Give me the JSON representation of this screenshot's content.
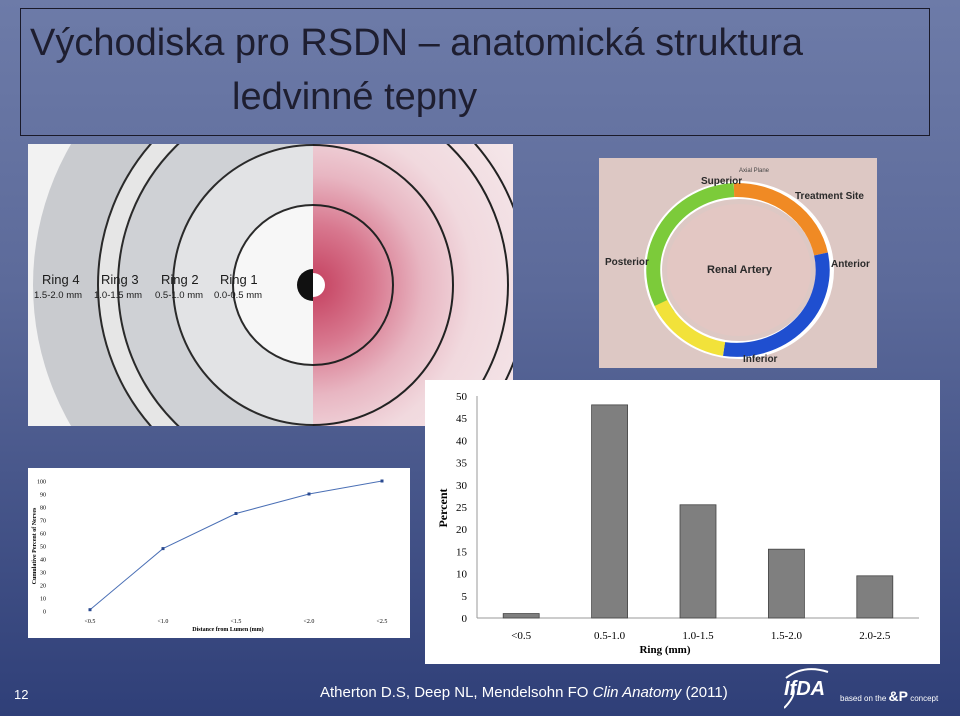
{
  "slide": {
    "title_line1": "Východiska pro RSDN – anatomická struktura",
    "title_line2": "ledvinné tepny",
    "number": "12",
    "citation_prefix": "Atherton D.S, Deep NL, Mendelsohn FO ",
    "citation_journal": "Clin Anatomy",
    "citation_year": " (2011)",
    "logo_text": "IfDA",
    "logo_tagline": "based on the",
    "logo_tagline2": "concept"
  },
  "rings_figure": {
    "rings": [
      {
        "label": "Ring 4",
        "range": "1.5-2.0 mm"
      },
      {
        "label": "Ring 3",
        "range": "1.0-1.5 mm"
      },
      {
        "label": "Ring 2",
        "range": "0.5-1.0 mm"
      },
      {
        "label": "Ring 1",
        "range": "0.0-0.5 mm"
      }
    ]
  },
  "artery_figure": {
    "labels": {
      "superior": "Superior",
      "treatment_site": "Treatment Site",
      "posterior": "Posterior",
      "renal_artery": "Renal Artery",
      "anterior": "Anterior",
      "inferior": "Inferior",
      "tiny_label": "Axial Plane"
    },
    "colors": {
      "green": "#7ccb3a",
      "orange": "#f08a24",
      "blue": "#1f4fd0",
      "yellow": "#f2e23a"
    }
  },
  "chart_data": [
    {
      "type": "line",
      "x": [
        "<0.5",
        "<1.0",
        "<1.5",
        "<2.0",
        "<2.5"
      ],
      "values": [
        1,
        48,
        75,
        90,
        100
      ],
      "xlabel": "Distance from Lumen (mm)",
      "ylabel": "Cumulative Percent of Nerves",
      "ylim": [
        0,
        100
      ],
      "yticks": [
        "0",
        "10",
        "20",
        "30",
        "40",
        "50",
        "60",
        "70",
        "80",
        "90",
        "100"
      ],
      "color": "#4a6fb5"
    },
    {
      "type": "bar",
      "categories": [
        "<0.5",
        "0.5-1.0",
        "1.0-1.5",
        "1.5-2.0",
        "2.0-2.5"
      ],
      "values": [
        1,
        48,
        25.5,
        15.5,
        9.5
      ],
      "xlabel": "Ring (mm)",
      "ylabel": "Percent",
      "ylim": [
        0,
        50
      ],
      "yticks": [
        "0",
        "5",
        "10",
        "15",
        "20",
        "25",
        "30",
        "35",
        "40",
        "45",
        "50"
      ],
      "color": "#7f7f7f"
    }
  ]
}
